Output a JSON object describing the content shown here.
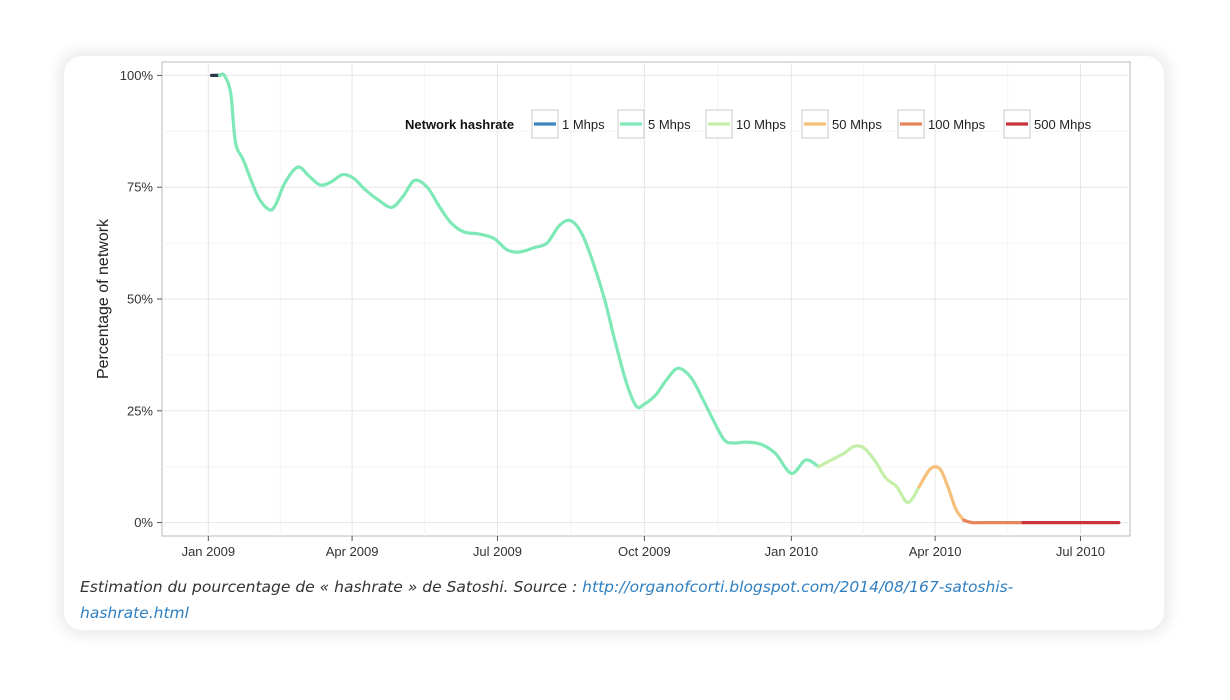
{
  "chart_data": {
    "type": "line",
    "ylabel": "Percentage of network",
    "xlabel": "",
    "y_ticks": [
      "0%",
      "25%",
      "50%",
      "75%",
      "100%"
    ],
    "y_tick_values": [
      0,
      25,
      50,
      75,
      100
    ],
    "ylim": [
      -3,
      103
    ],
    "x_ticks": [
      "Jan 2009",
      "Apr 2009",
      "Jul 2009",
      "Oct 2009",
      "Jan 2010",
      "Apr 2010",
      "Jul 2010"
    ],
    "x_tick_values": [
      "2009-01-01",
      "2009-04-01",
      "2009-07-01",
      "2009-10-01",
      "2010-01-01",
      "2010-04-01",
      "2010-07-01"
    ],
    "xlim": [
      "2008-12-03",
      "2010-08-01"
    ],
    "grid": true,
    "legend": {
      "title": "Network hashrate",
      "placement": "top-right",
      "entries": [
        {
          "label": "1 Mhps",
          "color": "#3a86c3"
        },
        {
          "label": "5 Mhps",
          "color": "#7fe8b7"
        },
        {
          "label": "10 Mhps",
          "color": "#c4efa8"
        },
        {
          "label": "50 Mhps",
          "color": "#f6c07a"
        },
        {
          "label": "100 Mhps",
          "color": "#e8845a"
        },
        {
          "label": "500 Mhps",
          "color": "#c9333b"
        }
      ]
    },
    "series": [
      {
        "x": [
          "2009-01-03",
          "2009-01-08",
          "2009-01-11",
          "2009-01-15",
          "2009-01-18",
          "2009-01-23",
          "2009-02-01",
          "2009-02-08",
          "2009-02-12",
          "2009-02-18",
          "2009-02-26",
          "2009-03-05",
          "2009-03-12",
          "2009-03-19",
          "2009-03-26",
          "2009-04-02",
          "2009-04-09",
          "2009-04-18",
          "2009-04-26",
          "2009-05-03",
          "2009-05-10",
          "2009-05-18",
          "2009-05-26",
          "2009-06-02",
          "2009-06-10",
          "2009-06-20",
          "2009-06-29",
          "2009-07-07",
          "2009-07-15",
          "2009-07-24",
          "2009-08-01",
          "2009-08-09",
          "2009-08-16",
          "2009-08-23",
          "2009-08-30",
          "2009-09-06",
          "2009-09-13",
          "2009-09-20",
          "2009-09-26",
          "2009-10-01",
          "2009-10-08",
          "2009-10-15",
          "2009-10-22",
          "2009-10-30",
          "2009-11-06",
          "2009-11-13",
          "2009-11-20",
          "2009-11-26",
          "2009-12-04",
          "2009-12-13",
          "2009-12-22",
          "2010-01-01",
          "2010-01-10",
          "2010-01-18",
          "2010-01-26",
          "2010-02-03",
          "2010-02-09",
          "2010-02-15",
          "2010-02-22",
          "2010-03-01",
          "2010-03-08",
          "2010-03-15",
          "2010-03-22",
          "2010-03-29",
          "2010-04-04",
          "2010-04-09",
          "2010-04-14",
          "2010-04-19",
          "2010-04-24",
          "2010-04-29",
          "2010-05-04",
          "2010-05-09",
          "2010-05-14",
          "2010-05-19",
          "2010-05-26",
          "2010-06-10",
          "2010-07-01",
          "2010-07-25"
        ],
        "values": [
          100,
          100,
          100,
          96,
          85,
          81,
          73,
          70,
          71,
          76,
          79.5,
          77.5,
          75.5,
          76.2,
          77.8,
          77,
          74.5,
          72,
          70.5,
          73,
          76.5,
          75,
          70.5,
          67,
          65,
          64.5,
          63.5,
          61,
          60.5,
          61.5,
          62.5,
          66.5,
          67.5,
          64.5,
          58,
          50,
          40,
          31,
          26,
          26.5,
          28.5,
          32,
          34.5,
          32.5,
          28,
          23,
          18.5,
          17.8,
          18,
          17.5,
          15.5,
          11,
          14,
          12.5,
          14,
          15.5,
          17,
          16.8,
          14,
          10,
          8,
          4.5,
          8,
          12,
          12,
          8,
          3,
          0.5,
          0,
          0,
          0,
          0,
          0,
          0,
          0,
          0,
          0,
          0
        ],
        "segment_colors": [
          {
            "from": "2009-01-03",
            "to": "2009-01-08",
            "color": "#2b3a4a"
          },
          {
            "from": "2009-01-08",
            "to": "2010-01-18",
            "color": "#7fe8b7"
          },
          {
            "from": "2010-01-18",
            "to": "2010-03-22",
            "color": "#c4efa8"
          },
          {
            "from": "2010-03-22",
            "to": "2010-04-19",
            "color": "#f6c07a"
          },
          {
            "from": "2010-04-19",
            "to": "2010-05-26",
            "color": "#e8845a"
          },
          {
            "from": "2010-05-26",
            "to": "2010-07-25",
            "color": "#c9333b"
          }
        ]
      }
    ]
  },
  "caption": {
    "text": "Estimation du pourcentage de « hashrate » de Satoshi. Source : ",
    "link": "http://organofcorti.blogspot.com/2014/08/167-satoshis-hashrate.html"
  }
}
